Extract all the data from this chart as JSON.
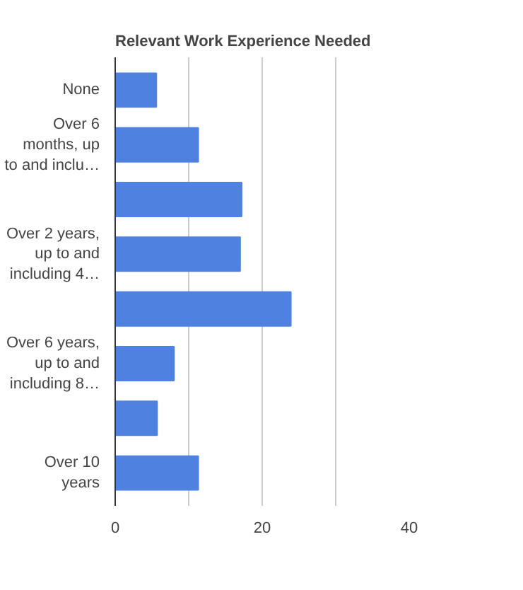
{
  "chart_data": {
    "type": "bar",
    "orientation": "horizontal",
    "title": "Relevant Work Experience Needed",
    "categories": [
      "None",
      "Over 6\nmonths, up\nto and inclu…",
      null,
      "Over 2 years,\nup to and\nincluding 4…",
      null,
      "Over 6 years,\nup to and\nincluding 8…",
      null,
      "Over 10\nyears"
    ],
    "values": [
      5.6,
      11.3,
      17.2,
      17.0,
      23.9,
      8.0,
      5.7,
      11.3
    ],
    "color": "#4f81e0",
    "xlim": [
      0,
      40
    ],
    "xticks": [
      0,
      {
        "value": 10,
        "label": null
      },
      20,
      {
        "value": 30,
        "label": null
      },
      40
    ],
    "grid": "x"
  }
}
